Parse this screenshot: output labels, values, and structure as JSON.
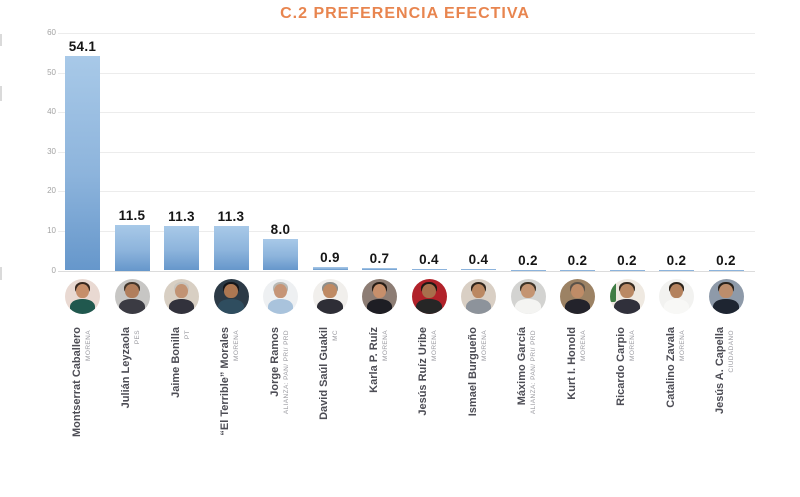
{
  "title": {
    "text": "C.2 PREFERENCIA EFECTIVA",
    "color": "#E8854F"
  },
  "chart_data": {
    "type": "bar",
    "title": "C.2 PREFERENCIA EFECTIVA",
    "xlabel": "",
    "ylabel": "",
    "ylim": [
      0,
      60
    ],
    "yticks": [
      0,
      10,
      20,
      30,
      40,
      50,
      60
    ],
    "grid": true,
    "legend": false,
    "bar_gradient_top": "#a8c9e8",
    "bar_gradient_bottom": "#6697cb",
    "gridline_color": "#ececec",
    "axis_label_color": "#a3a3a3",
    "value_label_color": "#151515",
    "categories": [
      "Montserrat Caballero",
      "Julián Leyzaola",
      "Jaime Bonilla",
      "“El Terrible” Morales",
      "Jorge Ramos",
      "David Saúl Guakil",
      "Karla P. Ruíz",
      "Jesús Ruíz Uribe",
      "Ismael Burgueño",
      "Máximo García",
      "Kurt I. Honold",
      "Ricardo Carpio",
      "Catalino Zavala",
      "Jesús A. Capella"
    ],
    "values": [
      54.1,
      11.5,
      11.3,
      11.3,
      8.0,
      0.9,
      0.7,
      0.4,
      0.4,
      0.2,
      0.2,
      0.2,
      0.2,
      0.2
    ],
    "value_labels": [
      "54.1",
      "11.5",
      "11.3",
      "11.3",
      "8.0",
      "0.9",
      "0.7",
      "0.4",
      "0.4",
      "0.2",
      "0.2",
      "0.2",
      "0.2",
      "0.2"
    ]
  },
  "candidates": [
    {
      "name": "Montserrat Caballero",
      "party": "MORENA",
      "value_label": "54.1",
      "avatar": {
        "bg": "#e9d9d2",
        "hair": "#38281f",
        "skin": "#c68e6a",
        "shirt": "#20584e"
      }
    },
    {
      "name": "Julián Leyzaola",
      "party": "PES",
      "value_label": "11.5",
      "avatar": {
        "bg": "#c7c6c4",
        "hair": "#43362b",
        "skin": "#b17e5c",
        "shirt": "#3b3b43"
      }
    },
    {
      "name": "Jaime Bonilla",
      "party": "PT",
      "value_label": "11.3",
      "avatar": {
        "bg": "#d8cfc3",
        "hair": "#c9c5be",
        "skin": "#c29373",
        "shirt": "#32323c"
      }
    },
    {
      "name": "“El Terrible” Morales",
      "party": "MORENA",
      "value_label": "11.3",
      "avatar": {
        "bg": "#2c3a46",
        "hair": "#15161a",
        "skin": "#ad7752",
        "shirt": "#2f4d5f"
      }
    },
    {
      "name": "Jorge Ramos",
      "party": "ALIANZA: PAN/ PRI/ PRD",
      "value_label": "8.0",
      "avatar": {
        "bg": "#eef0f2",
        "hair": "#b8b8b4",
        "skin": "#c69577",
        "shirt": "#a9c3dc"
      }
    },
    {
      "name": "David Saúl Guakil",
      "party": "MC",
      "value_label": "0.9",
      "avatar": {
        "bg": "#f1efec",
        "hair": "#8e8e8a",
        "skin": "#bf8a63",
        "shirt": "#2e2e36"
      }
    },
    {
      "name": "Karla P. Ruíz",
      "party": "MORENA",
      "value_label": "0.7",
      "avatar": {
        "bg": "#8d7d74",
        "hair": "#261c15",
        "skin": "#c78f6b",
        "shirt": "#1e1e24"
      }
    },
    {
      "name": "Jesús Ruíz Uribe",
      "party": "MORENA",
      "value_label": "0.4",
      "avatar": {
        "bg": "#b1222a",
        "hair": "#1f1914",
        "skin": "#a86f4c",
        "shirt": "#262626"
      }
    },
    {
      "name": "Ismael Burgueño",
      "party": "MORENA",
      "value_label": "0.4",
      "avatar": {
        "bg": "#d9cfc4",
        "hair": "#2f241b",
        "skin": "#bb8862",
        "shirt": "#8d939b"
      }
    },
    {
      "name": "Máximo García",
      "party": "ALIANZA: PAN/ PRI/ PRD",
      "value_label": "0.2",
      "avatar": {
        "bg": "#d3d3d1",
        "hair": "#3e3327",
        "skin": "#c49472",
        "shirt": "#f4f4f2"
      }
    },
    {
      "name": "Kurt I. Honold",
      "party": "MORENA",
      "value_label": "0.2",
      "avatar": {
        "bg": "#9c8264",
        "hair": "#5c5349",
        "skin": "#bf8c67",
        "shirt": "#23232b"
      }
    },
    {
      "name": "Ricardo Carpio",
      "party": "MORENA",
      "value_label": "0.2",
      "avatar": {
        "bg": "#efe9e1",
        "hair": "#372c22",
        "skin": "#ba8964",
        "shirt": "#30303b",
        "accent": "#3f7d44"
      }
    },
    {
      "name": "Catalino Zavala",
      "party": "MORENA",
      "value_label": "0.2",
      "avatar": {
        "bg": "#f2f2f0",
        "hair": "#2c241c",
        "skin": "#b4825e",
        "shirt": "#f8f8f6"
      }
    },
    {
      "name": "Jesús A. Capella",
      "party": "CIUDADANO",
      "value_label": "0.2",
      "avatar": {
        "bg": "#8e9aa9",
        "hair": "#2a231d",
        "skin": "#bc8d6c",
        "shirt": "#1e2531"
      }
    }
  ]
}
